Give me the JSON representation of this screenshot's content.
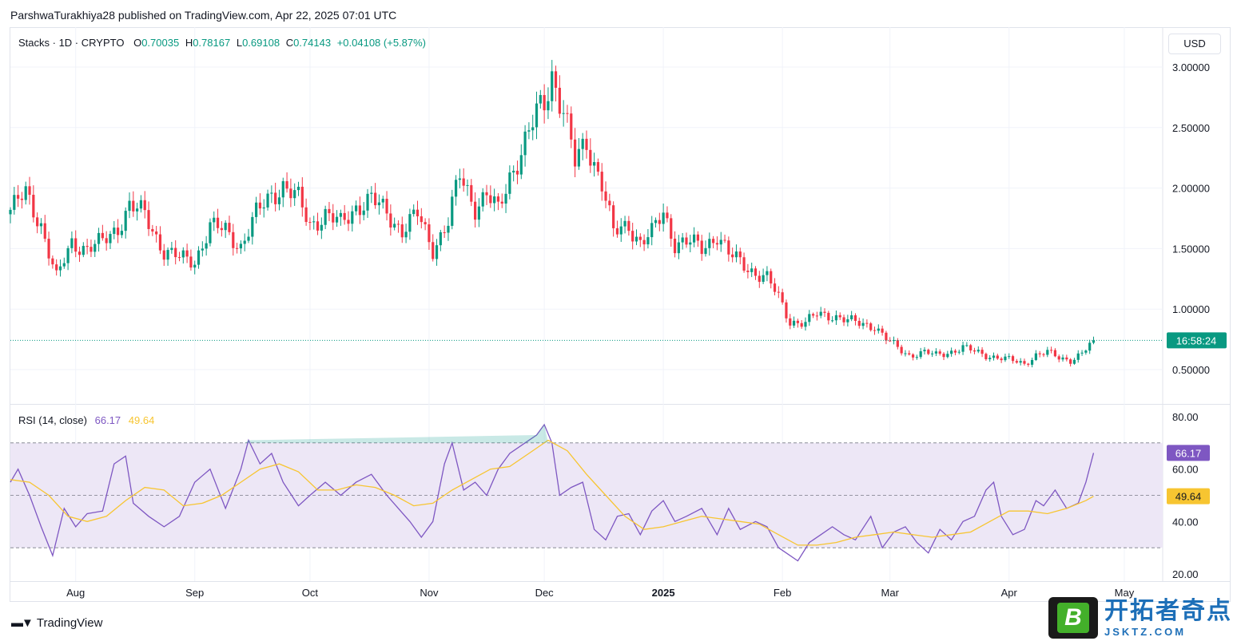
{
  "header": {
    "publisher_line": "ParshwaTurakhiya28 published on TradingView.com, Apr 22, 2025 07:01 UTC"
  },
  "legend": {
    "symbol": "Stacks · 1D · CRYPTO",
    "o_label": "O",
    "o": "0.70035",
    "h_label": "H",
    "h": "0.78167",
    "l_label": "L",
    "l": "0.69108",
    "c_label": "C",
    "c": "0.74143",
    "change": "+0.04108 (+5.87%)"
  },
  "currency": "USD",
  "countdown": "16:58:24",
  "rsi_legend": {
    "label": "RSI (14, close)",
    "rsi": "66.17",
    "ma": "49.64"
  },
  "footer": {
    "logo_text": "TradingView"
  },
  "watermark": {
    "cn": "开拓者奇点",
    "en": "JSKTZ.COM",
    "badge": "B"
  },
  "colors": {
    "up": "#089981",
    "down": "#f23645",
    "rsi": "#7e57c2",
    "rsi_ma": "#f7c531",
    "rsi_band": "#ede7f6"
  },
  "chart_data": [
    {
      "type": "candlestick",
      "title": "Stacks · 1D · CRYPTO",
      "ylim": [
        0.2,
        3.2
      ],
      "y_ticks": [
        "3.00000",
        "2.50000",
        "2.00000",
        "1.50000",
        "1.00000",
        "0.50000"
      ],
      "y_tick_values": [
        3.0,
        2.5,
        2.0,
        1.5,
        1.0,
        0.5
      ],
      "x_ticks": [
        "Aug",
        "Sep",
        "Oct",
        "Nov",
        "Dec",
        "2025",
        "Feb",
        "Mar",
        "Apr",
        "May"
      ],
      "x_tick_days": [
        17,
        48,
        78,
        109,
        139,
        170,
        201,
        229,
        260,
        290
      ],
      "last_price": 0.74143,
      "close_path": [
        [
          0,
          1.82
        ],
        [
          4,
          1.95
        ],
        [
          8,
          1.7
        ],
        [
          12,
          1.25
        ],
        [
          16,
          1.55
        ],
        [
          20,
          1.5
        ],
        [
          24,
          1.55
        ],
        [
          28,
          1.68
        ],
        [
          31,
          1.85
        ],
        [
          35,
          1.78
        ],
        [
          40,
          1.48
        ],
        [
          44,
          1.42
        ],
        [
          48,
          1.4
        ],
        [
          52,
          1.68
        ],
        [
          56,
          1.65
        ],
        [
          60,
          1.52
        ],
        [
          64,
          1.78
        ],
        [
          68,
          1.95
        ],
        [
          71,
          2.02
        ],
        [
          75,
          1.9
        ],
        [
          78,
          1.7
        ],
        [
          82,
          1.78
        ],
        [
          86,
          1.7
        ],
        [
          90,
          1.85
        ],
        [
          94,
          1.9
        ],
        [
          98,
          1.8
        ],
        [
          102,
          1.65
        ],
        [
          106,
          1.78
        ],
        [
          110,
          1.5
        ],
        [
          114,
          1.72
        ],
        [
          117,
          2.1
        ],
        [
          121,
          1.85
        ],
        [
          124,
          1.95
        ],
        [
          127,
          1.8
        ],
        [
          130,
          2.1
        ],
        [
          134,
          2.38
        ],
        [
          137,
          2.6
        ],
        [
          139,
          2.7
        ],
        [
          141,
          2.95
        ],
        [
          144,
          2.65
        ],
        [
          147,
          2.2
        ],
        [
          150,
          2.38
        ],
        [
          154,
          2.05
        ],
        [
          157,
          1.62
        ],
        [
          161,
          1.7
        ],
        [
          164,
          1.55
        ],
        [
          167,
          1.62
        ],
        [
          170,
          1.8
        ],
        [
          173,
          1.55
        ],
        [
          177,
          1.55
        ],
        [
          180,
          1.5
        ],
        [
          184,
          1.62
        ],
        [
          187,
          1.45
        ],
        [
          191,
          1.37
        ],
        [
          194,
          1.3
        ],
        [
          197,
          1.25
        ],
        [
          200,
          1.1
        ],
        [
          203,
          0.9
        ],
        [
          207,
          0.88
        ],
        [
          210,
          0.96
        ],
        [
          214,
          0.95
        ],
        [
          218,
          0.9
        ],
        [
          222,
          0.88
        ],
        [
          225,
          0.86
        ],
        [
          228,
          0.75
        ],
        [
          231,
          0.68
        ],
        [
          234,
          0.62
        ],
        [
          238,
          0.64
        ],
        [
          241,
          0.62
        ],
        [
          245,
          0.65
        ],
        [
          248,
          0.68
        ],
        [
          251,
          0.65
        ],
        [
          254,
          0.62
        ],
        [
          257,
          0.6
        ],
        [
          260,
          0.58
        ],
        [
          264,
          0.55
        ],
        [
          267,
          0.62
        ],
        [
          270,
          0.64
        ],
        [
          273,
          0.6
        ],
        [
          276,
          0.58
        ],
        [
          279,
          0.63
        ],
        [
          281,
          0.7
        ],
        [
          282,
          0.74
        ]
      ]
    },
    {
      "type": "line",
      "title": "RSI (14, close)",
      "ylim": [
        18,
        84
      ],
      "y_ticks": [
        "80.00",
        "60.00",
        "40.00",
        "20.00"
      ],
      "y_tick_values": [
        80,
        60,
        40,
        20
      ],
      "bands": [
        30,
        50,
        70
      ],
      "series": [
        {
          "name": "RSI",
          "last": 66.17,
          "path": [
            [
              0,
              55
            ],
            [
              2,
              60
            ],
            [
              5,
              50
            ],
            [
              8,
              38
            ],
            [
              11,
              27
            ],
            [
              14,
              45
            ],
            [
              17,
              38
            ],
            [
              20,
              43
            ],
            [
              24,
              44
            ],
            [
              27,
              62
            ],
            [
              30,
              65
            ],
            [
              32,
              47
            ],
            [
              36,
              42
            ],
            [
              40,
              38
            ],
            [
              44,
              42
            ],
            [
              48,
              55
            ],
            [
              52,
              60
            ],
            [
              56,
              45
            ],
            [
              60,
              60
            ],
            [
              62,
              71
            ],
            [
              65,
              62
            ],
            [
              68,
              66
            ],
            [
              71,
              55
            ],
            [
              75,
              46
            ],
            [
              78,
              50
            ],
            [
              82,
              55
            ],
            [
              86,
              50
            ],
            [
              90,
              55
            ],
            [
              94,
              58
            ],
            [
              98,
              50
            ],
            [
              101,
              45
            ],
            [
              104,
              40
            ],
            [
              107,
              34
            ],
            [
              110,
              40
            ],
            [
              113,
              62
            ],
            [
              115,
              70
            ],
            [
              118,
              52
            ],
            [
              121,
              55
            ],
            [
              124,
              50
            ],
            [
              127,
              60
            ],
            [
              130,
              66
            ],
            [
              134,
              70
            ],
            [
              137,
              73
            ],
            [
              139,
              77
            ],
            [
              141,
              70
            ],
            [
              143,
              50
            ],
            [
              146,
              53
            ],
            [
              149,
              55
            ],
            [
              152,
              37
            ],
            [
              155,
              33
            ],
            [
              158,
              42
            ],
            [
              161,
              43
            ],
            [
              164,
              35
            ],
            [
              167,
              44
            ],
            [
              170,
              48
            ],
            [
              173,
              40
            ],
            [
              176,
              42
            ],
            [
              180,
              45
            ],
            [
              184,
              35
            ],
            [
              187,
              45
            ],
            [
              190,
              37
            ],
            [
              194,
              40
            ],
            [
              197,
              38
            ],
            [
              200,
              30
            ],
            [
              202,
              28
            ],
            [
              205,
              25
            ],
            [
              208,
              32
            ],
            [
              211,
              35
            ],
            [
              214,
              38
            ],
            [
              217,
              35
            ],
            [
              220,
              33
            ],
            [
              224,
              42
            ],
            [
              227,
              30
            ],
            [
              230,
              36
            ],
            [
              233,
              38
            ],
            [
              236,
              32
            ],
            [
              239,
              28
            ],
            [
              242,
              37
            ],
            [
              245,
              33
            ],
            [
              248,
              40
            ],
            [
              251,
              42
            ],
            [
              254,
              52
            ],
            [
              256,
              55
            ],
            [
              258,
              42
            ],
            [
              261,
              35
            ],
            [
              264,
              37
            ],
            [
              267,
              48
            ],
            [
              269,
              46
            ],
            [
              272,
              52
            ],
            [
              275,
              45
            ],
            [
              278,
              47
            ],
            [
              280,
              55
            ],
            [
              282,
              66.17
            ]
          ]
        },
        {
          "name": "RSI-based MA",
          "last": 49.64,
          "path": [
            [
              0,
              56
            ],
            [
              5,
              55
            ],
            [
              10,
              50
            ],
            [
              15,
              42
            ],
            [
              20,
              40
            ],
            [
              25,
              42
            ],
            [
              30,
              48
            ],
            [
              35,
              53
            ],
            [
              40,
              52
            ],
            [
              45,
              46
            ],
            [
              50,
              47
            ],
            [
              55,
              50
            ],
            [
              60,
              55
            ],
            [
              65,
              60
            ],
            [
              70,
              62
            ],
            [
              75,
              59
            ],
            [
              80,
              52
            ],
            [
              85,
              52
            ],
            [
              90,
              54
            ],
            [
              95,
              53
            ],
            [
              100,
              50
            ],
            [
              105,
              46
            ],
            [
              110,
              47
            ],
            [
              115,
              52
            ],
            [
              120,
              56
            ],
            [
              125,
              60
            ],
            [
              130,
              61
            ],
            [
              135,
              66
            ],
            [
              140,
              71
            ],
            [
              145,
              67
            ],
            [
              150,
              58
            ],
            [
              155,
              50
            ],
            [
              160,
              42
            ],
            [
              165,
              37
            ],
            [
              170,
              38
            ],
            [
              175,
              40
            ],
            [
              180,
              42
            ],
            [
              185,
              41
            ],
            [
              190,
              40
            ],
            [
              195,
              39
            ],
            [
              200,
              35
            ],
            [
              205,
              31
            ],
            [
              210,
              31
            ],
            [
              215,
              32
            ],
            [
              220,
              34
            ],
            [
              225,
              35
            ],
            [
              230,
              36
            ],
            [
              235,
              35
            ],
            [
              240,
              34
            ],
            [
              245,
              35
            ],
            [
              250,
              36
            ],
            [
              255,
              40
            ],
            [
              260,
              44
            ],
            [
              265,
              44
            ],
            [
              270,
              43
            ],
            [
              275,
              45
            ],
            [
              280,
              48
            ],
            [
              282,
              49.64
            ]
          ]
        }
      ]
    }
  ]
}
